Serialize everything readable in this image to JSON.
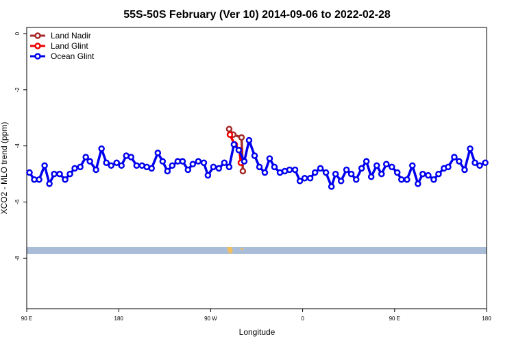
{
  "chart_data": {
    "type": "line",
    "title": "55S-50S February (Ver 10)   2014-09-06 to 2022-02-28",
    "xlabel": "Longitude",
    "ylabel": "XCO2 - MLO trend (ppm)",
    "xlim": [
      90,
      540
    ],
    "xticks": [
      {
        "value": 90,
        "label": "90 E"
      },
      {
        "value": 180,
        "label": "180"
      },
      {
        "value": 270,
        "label": "90 W"
      },
      {
        "value": 360,
        "label": "0"
      },
      {
        "value": 450,
        "label": "90 E"
      },
      {
        "value": 540,
        "label": "180"
      }
    ],
    "ylim": [
      -9.8,
      0.22
    ],
    "yticks": [
      0,
      -2,
      -4,
      -6,
      -8
    ],
    "legend": "top-left",
    "series": [
      {
        "name": "Land Nadir",
        "color": "#a52a2a",
        "x": [
          288.1,
          292.1,
          300.2,
          301.5
        ],
        "values": [
          -3.4,
          -3.6,
          -3.7,
          -4.9
        ]
      },
      {
        "name": "Land Glint",
        "color": "#ee0000",
        "x": [
          288.8,
          293.5,
          298.2,
          299.5
        ],
        "values": [
          -3.6,
          -3.95,
          -4.15,
          -4.6
        ]
      },
      {
        "name": "Ocean Glint",
        "color": "#0000ee",
        "x": [
          92.7,
          97.4,
          102.1,
          107.5,
          112.2,
          116.9,
          122.2,
          127.6,
          132.3,
          137.0,
          142.4,
          147.8,
          151.8,
          157.8,
          163.2,
          167.9,
          172.6,
          178.0,
          182.7,
          187.4,
          192.1,
          197.5,
          202.8,
          207.5,
          212.2,
          218.3,
          223.0,
          227.7,
          232.4,
          237.8,
          242.5,
          247.8,
          252.5,
          257.9,
          263.3,
          267.3,
          272.7,
          278.0,
          283.4,
          288.1,
          292.8,
          297.5,
          302.9,
          307.6,
          313.0,
          317.7,
          323.0,
          327.7,
          332.4,
          337.8,
          342.5,
          347.2,
          352.6,
          357.3,
          362.0,
          367.4,
          372.1,
          377.4,
          382.8,
          388.2,
          392.2,
          397.6,
          402.9,
          407.6,
          412.4,
          417.7,
          422.4,
          427.1,
          432.5,
          437.2,
          441.9,
          447.3,
          452.6,
          456.7,
          462.1,
          467.4,
          472.8,
          477.5,
          482.9,
          488.3,
          493.0,
          498.3,
          502.4,
          508.4,
          513.1,
          518.5,
          523.9,
          528.6,
          533.3,
          538.7
        ],
        "values": [
          -4.95,
          -5.2,
          -5.2,
          -4.7,
          -5.35,
          -5.0,
          -5.0,
          -5.2,
          -5.0,
          -4.8,
          -4.75,
          -4.4,
          -4.55,
          -4.85,
          -4.1,
          -4.6,
          -4.7,
          -4.6,
          -4.7,
          -4.35,
          -4.4,
          -4.7,
          -4.7,
          -4.75,
          -4.8,
          -4.25,
          -4.55,
          -4.9,
          -4.7,
          -4.55,
          -4.55,
          -4.85,
          -4.65,
          -4.55,
          -4.6,
          -5.05,
          -4.75,
          -4.8,
          -4.6,
          -4.75,
          -3.95,
          -4.15,
          -4.55,
          -3.8,
          -4.35,
          -4.75,
          -4.95,
          -4.45,
          -4.75,
          -4.95,
          -4.9,
          -4.85,
          -4.85,
          -5.25,
          -5.15,
          -5.15,
          -4.95,
          -4.8,
          -4.95,
          -5.45,
          -5.0,
          -5.25,
          -4.85,
          -5.0,
          -5.2,
          -4.8,
          -4.55,
          -5.1,
          -4.7,
          -5.0,
          -4.65,
          -4.75,
          -4.95,
          -5.2,
          -5.2,
          -4.7,
          -5.35,
          -5.0,
          -5.05,
          -5.2,
          -5.0,
          -4.8,
          -4.75,
          -4.4,
          -4.55,
          -4.85,
          -4.1,
          -4.6,
          -4.7,
          -4.6
        ]
      }
    ]
  }
}
